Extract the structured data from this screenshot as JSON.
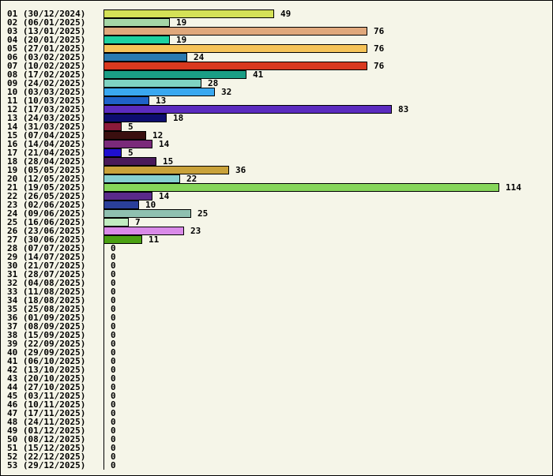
{
  "chart_data": {
    "type": "bar",
    "orientation": "horizontal",
    "title": "",
    "xlabel": "",
    "ylabel": "",
    "xlim": [
      0,
      114
    ],
    "grid": false,
    "categories": [
      "01 (30/12/2024)",
      "02 (06/01/2025)",
      "03 (13/01/2025)",
      "04 (20/01/2025)",
      "05 (27/01/2025)",
      "06 (03/02/2025)",
      "07 (10/02/2025)",
      "08 (17/02/2025)",
      "09 (24/02/2025)",
      "10 (03/03/2025)",
      "11 (10/03/2025)",
      "12 (17/03/2025)",
      "13 (24/03/2025)",
      "14 (31/03/2025)",
      "15 (07/04/2025)",
      "16 (14/04/2025)",
      "17 (21/04/2025)",
      "18 (28/04/2025)",
      "19 (05/05/2025)",
      "20 (12/05/2025)",
      "21 (19/05/2025)",
      "22 (26/05/2025)",
      "23 (02/06/2025)",
      "24 (09/06/2025)",
      "25 (16/06/2025)",
      "26 (23/06/2025)",
      "27 (30/06/2025)",
      "28 (07/07/2025)",
      "29 (14/07/2025)",
      "30 (21/07/2025)",
      "31 (28/07/2025)",
      "32 (04/08/2025)",
      "33 (11/08/2025)",
      "34 (18/08/2025)",
      "35 (25/08/2025)",
      "36 (01/09/2025)",
      "37 (08/09/2025)",
      "38 (15/09/2025)",
      "39 (22/09/2025)",
      "40 (29/09/2025)",
      "41 (06/10/2025)",
      "42 (13/10/2025)",
      "43 (20/10/2025)",
      "44 (27/10/2025)",
      "45 (03/11/2025)",
      "46 (10/11/2025)",
      "47 (17/11/2025)",
      "48 (24/11/2025)",
      "49 (01/12/2025)",
      "50 (08/12/2025)",
      "51 (15/12/2025)",
      "52 (22/12/2025)",
      "53 (29/12/2025)"
    ],
    "values": [
      49,
      19,
      76,
      19,
      76,
      24,
      76,
      41,
      28,
      32,
      13,
      83,
      18,
      5,
      12,
      14,
      5,
      15,
      36,
      22,
      114,
      14,
      10,
      25,
      7,
      23,
      11,
      0,
      0,
      0,
      0,
      0,
      0,
      0,
      0,
      0,
      0,
      0,
      0,
      0,
      0,
      0,
      0,
      0,
      0,
      0,
      0,
      0,
      0,
      0,
      0,
      0,
      0
    ],
    "colors": [
      "#d4e157",
      "#a5d6a7",
      "#e0a87c",
      "#1dd1a1",
      "#f6c358",
      "#2a7ab0",
      "#d9391f",
      "#1a9e85",
      "#7fd3c2",
      "#3aa8f0",
      "#1f62c9",
      "#5b2bbf",
      "#0d0d70",
      "#8b1a3a",
      "#3a0f0f",
      "#7a2a7a",
      "#1f0fd0",
      "#4a1a5a",
      "#c9a23a",
      "#86d0d0",
      "#86d65a",
      "#5a2a8a",
      "#2a3f9a",
      "#8fc0b0",
      "#c0ecc0",
      "#d98ae8",
      "#4aa012",
      "#cccccc",
      "#cccccc",
      "#cccccc",
      "#cccccc",
      "#cccccc",
      "#cccccc",
      "#cccccc",
      "#cccccc",
      "#cccccc",
      "#cccccc",
      "#cccccc",
      "#cccccc",
      "#cccccc",
      "#cccccc",
      "#cccccc",
      "#cccccc",
      "#cccccc",
      "#cccccc",
      "#cccccc",
      "#cccccc",
      "#cccccc",
      "#cccccc",
      "#cccccc",
      "#cccccc",
      "#cccccc",
      "#cccccc"
    ]
  }
}
